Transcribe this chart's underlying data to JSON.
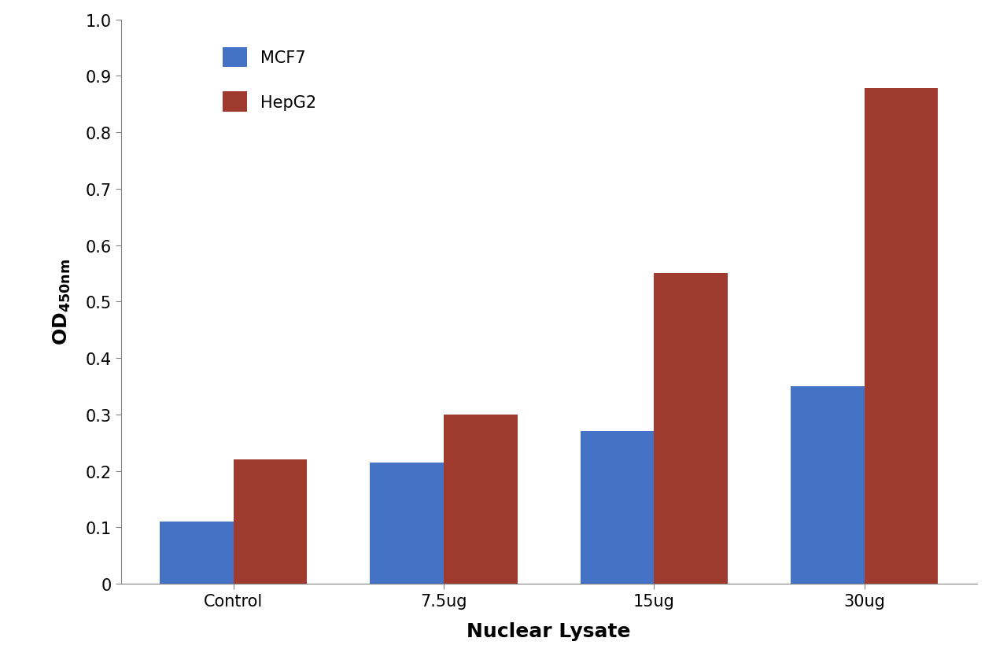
{
  "categories": [
    "Control",
    "7.5ug",
    "15ug",
    "30ug"
  ],
  "mcf7_values": [
    0.11,
    0.215,
    0.27,
    0.35
  ],
  "hepg2_values": [
    0.22,
    0.3,
    0.55,
    0.878
  ],
  "mcf7_color": "#4472C4",
  "hepg2_color": "#9E3B2E",
  "xlabel": "Nuclear Lysate",
  "ylim": [
    0,
    1.0
  ],
  "yticks": [
    0,
    0.1,
    0.2,
    0.3,
    0.4,
    0.5,
    0.6,
    0.7,
    0.8,
    0.9,
    1.0
  ],
  "legend_labels": [
    "MCF7",
    "HepG2"
  ],
  "bar_width": 0.35,
  "background_color": "#ffffff",
  "axis_label_fontsize": 18,
  "tick_fontsize": 15,
  "legend_fontsize": 15
}
